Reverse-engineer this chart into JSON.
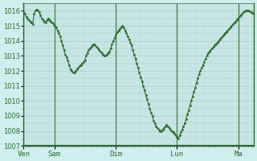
{
  "title": "",
  "background_color": "#d0eeee",
  "plot_bg_color": "#d0eeee",
  "line_color": "#2d6e2d",
  "marker_color": "#2d6e2d",
  "grid_color": "#b0cccc",
  "tick_label_color": "#2d6e2d",
  "axis_label_color": "#2d6e2d",
  "ylim": [
    1007,
    1016.5
  ],
  "yticks": [
    1007,
    1008,
    1009,
    1010,
    1011,
    1012,
    1013,
    1014,
    1015,
    1016
  ],
  "day_labels": [
    "Ven",
    "Sam",
    "Dim",
    "Lun",
    "Ma"
  ],
  "day_positions": [
    0,
    24,
    72,
    120,
    168
  ],
  "total_hours": 180,
  "data_y": [
    1015.9,
    1015.8,
    1015.6,
    1015.5,
    1015.4,
    1015.3,
    1015.2,
    1015.1,
    1015.8,
    1016.0,
    1016.1,
    1016.0,
    1015.9,
    1015.7,
    1015.5,
    1015.4,
    1015.3,
    1015.2,
    1015.4,
    1015.5,
    1015.4,
    1015.3,
    1015.2,
    1015.1,
    1015.0,
    1014.9,
    1014.7,
    1014.5,
    1014.3,
    1014.0,
    1013.7,
    1013.4,
    1013.1,
    1012.9,
    1012.7,
    1012.4,
    1012.1,
    1012.0,
    1011.9,
    1011.9,
    1012.0,
    1012.1,
    1012.2,
    1012.3,
    1012.4,
    1012.5,
    1012.6,
    1012.7,
    1013.0,
    1013.2,
    1013.4,
    1013.5,
    1013.6,
    1013.7,
    1013.8,
    1013.7,
    1013.6,
    1013.5,
    1013.4,
    1013.3,
    1013.2,
    1013.1,
    1013.0,
    1013.0,
    1013.1,
    1013.2,
    1013.3,
    1013.5,
    1013.8,
    1014.0,
    1014.2,
    1014.4,
    1014.6,
    1014.7,
    1014.8,
    1014.9,
    1015.0,
    1014.9,
    1014.7,
    1014.5,
    1014.3,
    1014.1,
    1013.9,
    1013.7,
    1013.4,
    1013.1,
    1012.8,
    1012.5,
    1012.2,
    1011.9,
    1011.6,
    1011.3,
    1011.0,
    1010.7,
    1010.4,
    1010.1,
    1009.8,
    1009.5,
    1009.2,
    1009.0,
    1008.7,
    1008.5,
    1008.3,
    1008.2,
    1008.1,
    1008.0,
    1008.0,
    1008.1,
    1008.2,
    1008.3,
    1008.4,
    1008.3,
    1008.2,
    1008.1,
    1008.0,
    1007.9,
    1007.8,
    1007.7,
    1007.6,
    1007.5,
    1007.7,
    1007.9,
    1008.1,
    1008.3,
    1008.5,
    1008.8,
    1009.1,
    1009.4,
    1009.7,
    1010.0,
    1010.3,
    1010.6,
    1010.9,
    1011.2,
    1011.5,
    1011.8,
    1012.0,
    1012.2,
    1012.4,
    1012.6,
    1012.8,
    1013.0,
    1013.2,
    1013.3,
    1013.4,
    1013.5,
    1013.6,
    1013.7,
    1013.8,
    1013.9,
    1014.0,
    1014.1,
    1014.2,
    1014.3,
    1014.4,
    1014.5,
    1014.6,
    1014.7,
    1014.8,
    1014.9,
    1015.0,
    1015.1,
    1015.2,
    1015.3,
    1015.4,
    1015.5,
    1015.6,
    1015.7,
    1015.8,
    1015.9,
    1015.95,
    1016.0,
    1016.05,
    1016.0,
    1015.95,
    1015.9,
    1015.85,
    1015.8
  ]
}
